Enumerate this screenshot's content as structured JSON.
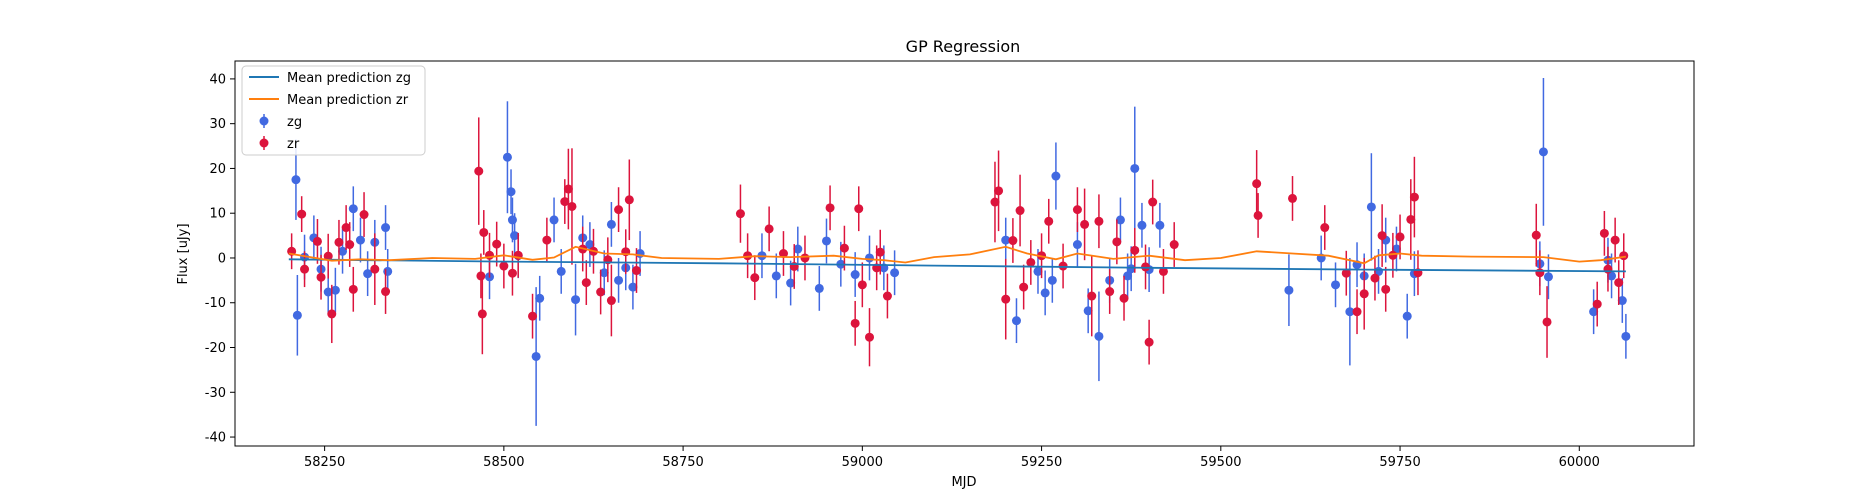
{
  "chart_data": {
    "type": "scatter",
    "title": "GP Regression",
    "xlabel": "MJD",
    "ylabel": "Flux [uJy]",
    "xlim": [
      58125,
      60160
    ],
    "ylim": [
      -42,
      44
    ],
    "xticks": [
      58250,
      58500,
      58750,
      59000,
      59250,
      59500,
      59750,
      60000
    ],
    "yticks": [
      -40,
      -30,
      -20,
      -10,
      0,
      10,
      20,
      30,
      40
    ],
    "grid": false,
    "legend_position": "top-left",
    "legend": [
      "Mean prediction zg",
      "Mean prediction zr",
      "zg",
      "zr"
    ],
    "colors": {
      "mean_zg": "#1f77b4",
      "mean_zr": "#ff7f0e",
      "zg": "#4169e1",
      "zr": "#dc143c"
    },
    "series": [
      {
        "name": "Mean prediction zg",
        "kind": "line",
        "points": [
          [
            58200,
            -0.3
          ],
          [
            58500,
            -0.8
          ],
          [
            58800,
            -1.2
          ],
          [
            59100,
            -1.7
          ],
          [
            59400,
            -2.2
          ],
          [
            59700,
            -2.6
          ],
          [
            60065,
            -3.0
          ]
        ]
      },
      {
        "name": "Mean prediction zr",
        "kind": "line",
        "points": [
          [
            58200,
            1.0
          ],
          [
            58230,
            0.2
          ],
          [
            58260,
            -0.6
          ],
          [
            58300,
            -0.3
          ],
          [
            58340,
            -0.5
          ],
          [
            58400,
            0.0
          ],
          [
            58460,
            -0.2
          ],
          [
            58500,
            0.6
          ],
          [
            58540,
            -0.4
          ],
          [
            58570,
            0.1
          ],
          [
            58600,
            2.5
          ],
          [
            58640,
            1.0
          ],
          [
            58680,
            0.8
          ],
          [
            58720,
            0.0
          ],
          [
            58800,
            -0.2
          ],
          [
            58850,
            0.4
          ],
          [
            58900,
            0.2
          ],
          [
            58960,
            0.5
          ],
          [
            59000,
            -0.2
          ],
          [
            59030,
            -0.5
          ],
          [
            59060,
            -1.0
          ],
          [
            59100,
            0.2
          ],
          [
            59150,
            0.8
          ],
          [
            59200,
            2.5
          ],
          [
            59230,
            1.0
          ],
          [
            59270,
            -0.3
          ],
          [
            59300,
            1.0
          ],
          [
            59350,
            -0.2
          ],
          [
            59400,
            0.5
          ],
          [
            59450,
            -0.5
          ],
          [
            59500,
            0.0
          ],
          [
            59550,
            1.5
          ],
          [
            59600,
            1.0
          ],
          [
            59650,
            0.5
          ],
          [
            59700,
            -1.2
          ],
          [
            59720,
            0.6
          ],
          [
            59750,
            1.0
          ],
          [
            59780,
            0.5
          ],
          [
            59850,
            0.3
          ],
          [
            59950,
            0.2
          ],
          [
            60000,
            -0.8
          ],
          [
            60030,
            -0.5
          ],
          [
            60065,
            0.3
          ]
        ]
      },
      {
        "name": "zg",
        "kind": "errorbar",
        "points": [
          [
            58210,
            17.5,
            9
          ],
          [
            58212,
            -12.8,
            9
          ],
          [
            58222,
            0.2,
            5
          ],
          [
            58235,
            4.5,
            5
          ],
          [
            58245,
            -2.5,
            5
          ],
          [
            58255,
            -7.6,
            5
          ],
          [
            58265,
            -7.2,
            5
          ],
          [
            58275,
            1.5,
            5
          ],
          [
            58290,
            11,
            5
          ],
          [
            58300,
            4,
            5
          ],
          [
            58310,
            -3.5,
            5
          ],
          [
            58320,
            3.5,
            5
          ],
          [
            58335,
            6.8,
            5
          ],
          [
            58338,
            -3,
            5
          ],
          [
            58480,
            -4.2,
            5
          ],
          [
            58505,
            22.5,
            12.5
          ],
          [
            58510,
            14.8,
            5
          ],
          [
            58512,
            8.5,
            5
          ],
          [
            58515,
            5,
            5
          ],
          [
            58520,
            0.5,
            5
          ],
          [
            58545,
            -22,
            15.5
          ],
          [
            58550,
            -9,
            5
          ],
          [
            58570,
            8.5,
            5
          ],
          [
            58580,
            -3,
            5
          ],
          [
            58600,
            -9.3,
            8
          ],
          [
            58610,
            4.5,
            5
          ],
          [
            58620,
            3,
            5
          ],
          [
            58640,
            -3.3,
            5
          ],
          [
            58650,
            7.5,
            5
          ],
          [
            58660,
            -5,
            5
          ],
          [
            58670,
            -2.2,
            5
          ],
          [
            58680,
            -6.5,
            5
          ],
          [
            58690,
            1,
            5
          ],
          [
            58860,
            0.5,
            5
          ],
          [
            58880,
            -4,
            5
          ],
          [
            58900,
            -5.6,
            5
          ],
          [
            58910,
            2,
            5
          ],
          [
            58940,
            -6.8,
            5
          ],
          [
            58950,
            3.8,
            5
          ],
          [
            58970,
            -1.4,
            5
          ],
          [
            58990,
            -3.7,
            5
          ],
          [
            59010,
            0,
            5
          ],
          [
            59030,
            -2.2,
            5
          ],
          [
            59045,
            -3.3,
            5
          ],
          [
            59200,
            4,
            5
          ],
          [
            59215,
            -14,
            5
          ],
          [
            59245,
            -3,
            5
          ],
          [
            59255,
            -7.8,
            5
          ],
          [
            59265,
            -5,
            5
          ],
          [
            59270,
            18.3,
            7.5
          ],
          [
            59300,
            3,
            5
          ],
          [
            59315,
            -11.8,
            5
          ],
          [
            59330,
            -17.5,
            10
          ],
          [
            59345,
            -5,
            5
          ],
          [
            59360,
            8.5,
            5
          ],
          [
            59370,
            -4,
            5
          ],
          [
            59375,
            -2.4,
            5
          ],
          [
            59380,
            20,
            13.8
          ],
          [
            59390,
            7.3,
            5
          ],
          [
            59400,
            -2.6,
            5
          ],
          [
            59415,
            7.3,
            5
          ],
          [
            59595,
            -7.2,
            8
          ],
          [
            59640,
            0,
            5
          ],
          [
            59660,
            -6,
            5
          ],
          [
            59680,
            -12,
            12
          ],
          [
            59690,
            -1.5,
            5
          ],
          [
            59700,
            -4,
            5
          ],
          [
            59710,
            11.4,
            12
          ],
          [
            59720,
            -3,
            5
          ],
          [
            59730,
            4,
            5
          ],
          [
            59745,
            2,
            5
          ],
          [
            59760,
            -13,
            5
          ],
          [
            59770,
            -3.5,
            5
          ],
          [
            59945,
            -1.3,
            5
          ],
          [
            59950,
            23.7,
            16.5
          ],
          [
            59957,
            -4.2,
            5
          ],
          [
            60020,
            -12,
            5
          ],
          [
            60040,
            -0.5,
            5
          ],
          [
            60045,
            -4,
            5
          ],
          [
            60060,
            -9.5,
            5
          ],
          [
            60065,
            -17.5,
            5
          ]
        ]
      },
      {
        "name": "zr",
        "kind": "errorbar",
        "points": [
          [
            58204,
            1.5,
            4
          ],
          [
            58218,
            9.8,
            4
          ],
          [
            58222,
            -2.5,
            4
          ],
          [
            58240,
            3.7,
            5
          ],
          [
            58245,
            -4.3,
            5
          ],
          [
            58255,
            0.4,
            5
          ],
          [
            58260,
            -12.5,
            6.5
          ],
          [
            58270,
            3.5,
            5
          ],
          [
            58280,
            6.8,
            5
          ],
          [
            58285,
            3,
            5
          ],
          [
            58290,
            -7,
            5
          ],
          [
            58305,
            9.7,
            5
          ],
          [
            58320,
            -2.5,
            8
          ],
          [
            58335,
            -7.5,
            5
          ],
          [
            58465,
            19.4,
            12
          ],
          [
            58468,
            -4,
            5
          ],
          [
            58470,
            -12.5,
            9
          ],
          [
            58472,
            5.7,
            5
          ],
          [
            58480,
            0.6,
            5
          ],
          [
            58490,
            3.1,
            5
          ],
          [
            58500,
            -1.8,
            5
          ],
          [
            58512,
            -3.4,
            5
          ],
          [
            58520,
            0.6,
            5
          ],
          [
            58540,
            -13,
            5
          ],
          [
            58560,
            4,
            5
          ],
          [
            58585,
            12.6,
            5
          ],
          [
            58590,
            15.4,
            9
          ],
          [
            58595,
            11.5,
            13
          ],
          [
            58610,
            2,
            5
          ],
          [
            58615,
            -5.5,
            5
          ],
          [
            58625,
            1.5,
            5
          ],
          [
            58635,
            -7.6,
            5
          ],
          [
            58645,
            -0.4,
            5
          ],
          [
            58650,
            -9.5,
            8
          ],
          [
            58660,
            10.8,
            5
          ],
          [
            58670,
            1.4,
            5
          ],
          [
            58675,
            13,
            9
          ],
          [
            58685,
            -2.8,
            5
          ],
          [
            58830,
            9.9,
            6.5
          ],
          [
            58840,
            0.5,
            5
          ],
          [
            58850,
            -4.4,
            5
          ],
          [
            58870,
            6.5,
            5
          ],
          [
            58890,
            1,
            5
          ],
          [
            58905,
            -1.9,
            5
          ],
          [
            58920,
            0,
            5
          ],
          [
            58955,
            11.2,
            5
          ],
          [
            58975,
            2.2,
            5
          ],
          [
            58990,
            -14.6,
            5
          ],
          [
            58995,
            11,
            5
          ],
          [
            59000,
            -6,
            5
          ],
          [
            59010,
            -17.7,
            6.5
          ],
          [
            59020,
            -2.2,
            5
          ],
          [
            59025,
            1.3,
            5
          ],
          [
            59035,
            -8.5,
            5
          ],
          [
            59185,
            12.5,
            9
          ],
          [
            59190,
            15,
            9
          ],
          [
            59200,
            -9.2,
            9
          ],
          [
            59210,
            3.9,
            5
          ],
          [
            59220,
            10.6,
            8
          ],
          [
            59225,
            -6.5,
            5
          ],
          [
            59235,
            -1,
            5
          ],
          [
            59250,
            0.5,
            5
          ],
          [
            59260,
            8.2,
            5
          ],
          [
            59280,
            -1.8,
            5
          ],
          [
            59300,
            10.8,
            5
          ],
          [
            59310,
            7.5,
            8
          ],
          [
            59320,
            -8.5,
            9
          ],
          [
            59330,
            8.2,
            6
          ],
          [
            59345,
            -7.5,
            5
          ],
          [
            59355,
            3.6,
            5
          ],
          [
            59365,
            -9,
            5
          ],
          [
            59380,
            1.7,
            5
          ],
          [
            59395,
            -2,
            5
          ],
          [
            59400,
            -18.8,
            5
          ],
          [
            59405,
            12.5,
            5
          ],
          [
            59420,
            -3,
            5
          ],
          [
            59435,
            3,
            5
          ],
          [
            59550,
            16.6,
            7.5
          ],
          [
            59552,
            9.5,
            5
          ],
          [
            59600,
            13.3,
            5
          ],
          [
            59645,
            6.8,
            5
          ],
          [
            59675,
            -3.4,
            5
          ],
          [
            59690,
            -12,
            5
          ],
          [
            59700,
            -8,
            8
          ],
          [
            59715,
            -4.5,
            5
          ],
          [
            59725,
            5,
            7
          ],
          [
            59730,
            -7,
            5
          ],
          [
            59740,
            0.6,
            5
          ],
          [
            59750,
            4.7,
            5
          ],
          [
            59765,
            8.6,
            9
          ],
          [
            59770,
            13.6,
            9
          ],
          [
            59775,
            -3.3,
            5
          ],
          [
            59940,
            5.1,
            7
          ],
          [
            59945,
            -3.3,
            5
          ],
          [
            59955,
            -14.3,
            8
          ],
          [
            60025,
            -10.3,
            5
          ],
          [
            60035,
            5.5,
            5
          ],
          [
            60040,
            -2.5,
            5
          ],
          [
            60050,
            4,
            5
          ],
          [
            60055,
            -5.5,
            5
          ],
          [
            60062,
            0.5,
            5
          ]
        ]
      }
    ]
  }
}
